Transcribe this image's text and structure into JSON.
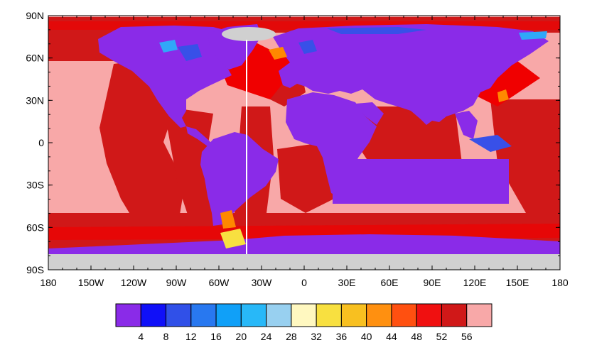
{
  "map": {
    "y_axis_labels": [
      "90N",
      "60N",
      "30N",
      "0",
      "30S",
      "60S",
      "90S"
    ],
    "x_axis_labels": [
      "180",
      "150W",
      "120W",
      "90W",
      "60W",
      "30W",
      "0",
      "30E",
      "60E",
      "90E",
      "120E",
      "150E",
      "180"
    ],
    "colors": {
      "ocean_base": "#f8a8a8",
      "deep_red": "#d01818",
      "red": "#f00000",
      "red_orange": "#ff3010",
      "land": "#8a2be8",
      "blue": "#3850e8",
      "sky_blue": "#30a8f8",
      "orange": "#ff8800",
      "yellow": "#f8e040",
      "ice_gray": "#d0d0d0",
      "white_line": "#ffffff"
    }
  },
  "colorbar": {
    "labels": [
      "4",
      "8",
      "12",
      "16",
      "20",
      "24",
      "28",
      "32",
      "36",
      "40",
      "44",
      "48",
      "52",
      "56"
    ],
    "colors": [
      "#8a2be8",
      "#1010f8",
      "#3050e8",
      "#2878f0",
      "#10a0f8",
      "#28b8f8",
      "#98d0f0",
      "#fff8c0",
      "#f8e040",
      "#f8c020",
      "#ff9010",
      "#ff5010",
      "#f01010",
      "#d01818",
      "#f8a8a8"
    ]
  }
}
